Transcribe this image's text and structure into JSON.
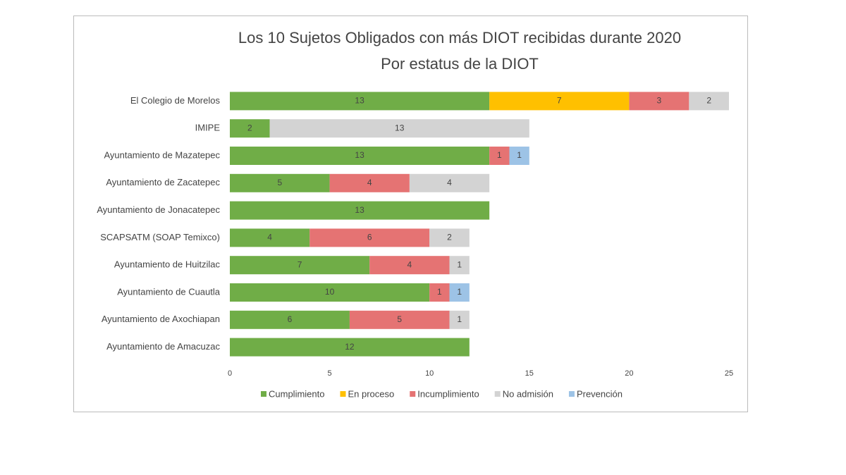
{
  "chart_data": {
    "type": "stacked-barh",
    "title": "Los 10 Sujetos Obligados con más DIOT recibidas durante 2020",
    "subtitle": "Por estatus de la DIOT",
    "categories": [
      "El Colegio de Morelos",
      "IMIPE",
      "Ayuntamiento de Mazatepec",
      "Ayuntamiento de Zacatepec",
      "Ayuntamiento de Jonacatepec",
      "SCAPSATM (SOAP Temixco)",
      "Ayuntamiento de Huitzilac",
      "Ayuntamiento de Cuautla",
      "Ayuntamiento de Axochiapan",
      "Ayuntamiento de Amacuzac"
    ],
    "series": [
      {
        "name": "Cumplimiento",
        "color": "#70ad47",
        "values": [
          13,
          2,
          13,
          5,
          13,
          4,
          7,
          10,
          6,
          12
        ]
      },
      {
        "name": "En proceso",
        "color": "#ffc000",
        "values": [
          7,
          null,
          null,
          null,
          null,
          null,
          null,
          null,
          null,
          null
        ]
      },
      {
        "name": "Incumplimiento",
        "color": "#e57373",
        "values": [
          3,
          null,
          1,
          4,
          null,
          6,
          4,
          1,
          5,
          null
        ]
      },
      {
        "name": "No admisión",
        "color": "#d3d3d3",
        "values": [
          2,
          13,
          null,
          4,
          null,
          2,
          1,
          null,
          1,
          null
        ]
      },
      {
        "name": "Prevención",
        "color": "#9dc3e6",
        "values": [
          null,
          null,
          1,
          null,
          null,
          null,
          null,
          1,
          null,
          null
        ]
      }
    ],
    "xlim": [
      0,
      25
    ],
    "xticks": [
      0,
      5,
      10,
      15,
      20,
      25
    ],
    "legend": "bottom"
  }
}
